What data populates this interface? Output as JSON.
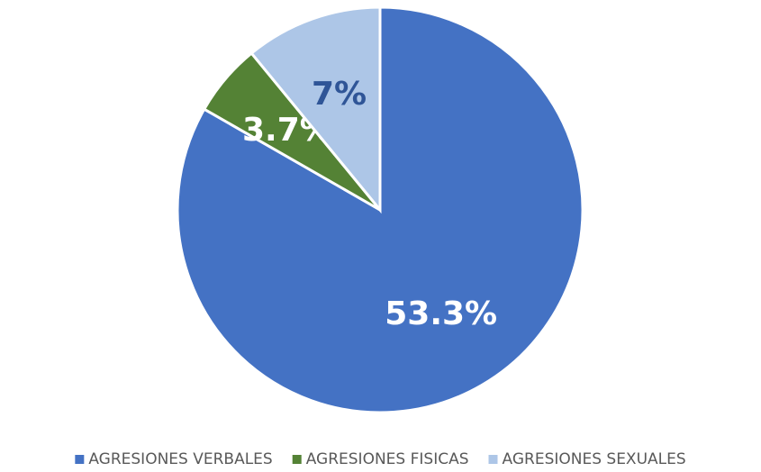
{
  "chart_data": {
    "type": "pie",
    "categories": [
      "AGRESIONES VERBALES",
      "AGRESIONES FISICAS",
      "AGRESIONES SEXUALES"
    ],
    "values": [
      53.3,
      3.7,
      7
    ],
    "value_labels": [
      "53.3%",
      "3.7%",
      "7%"
    ],
    "colors": [
      "#4472c4",
      "#548235",
      "#adc6e7"
    ],
    "label_colors": [
      "#ffffff",
      "#ffffff",
      "#2f5597"
    ],
    "legend": "bottom"
  }
}
